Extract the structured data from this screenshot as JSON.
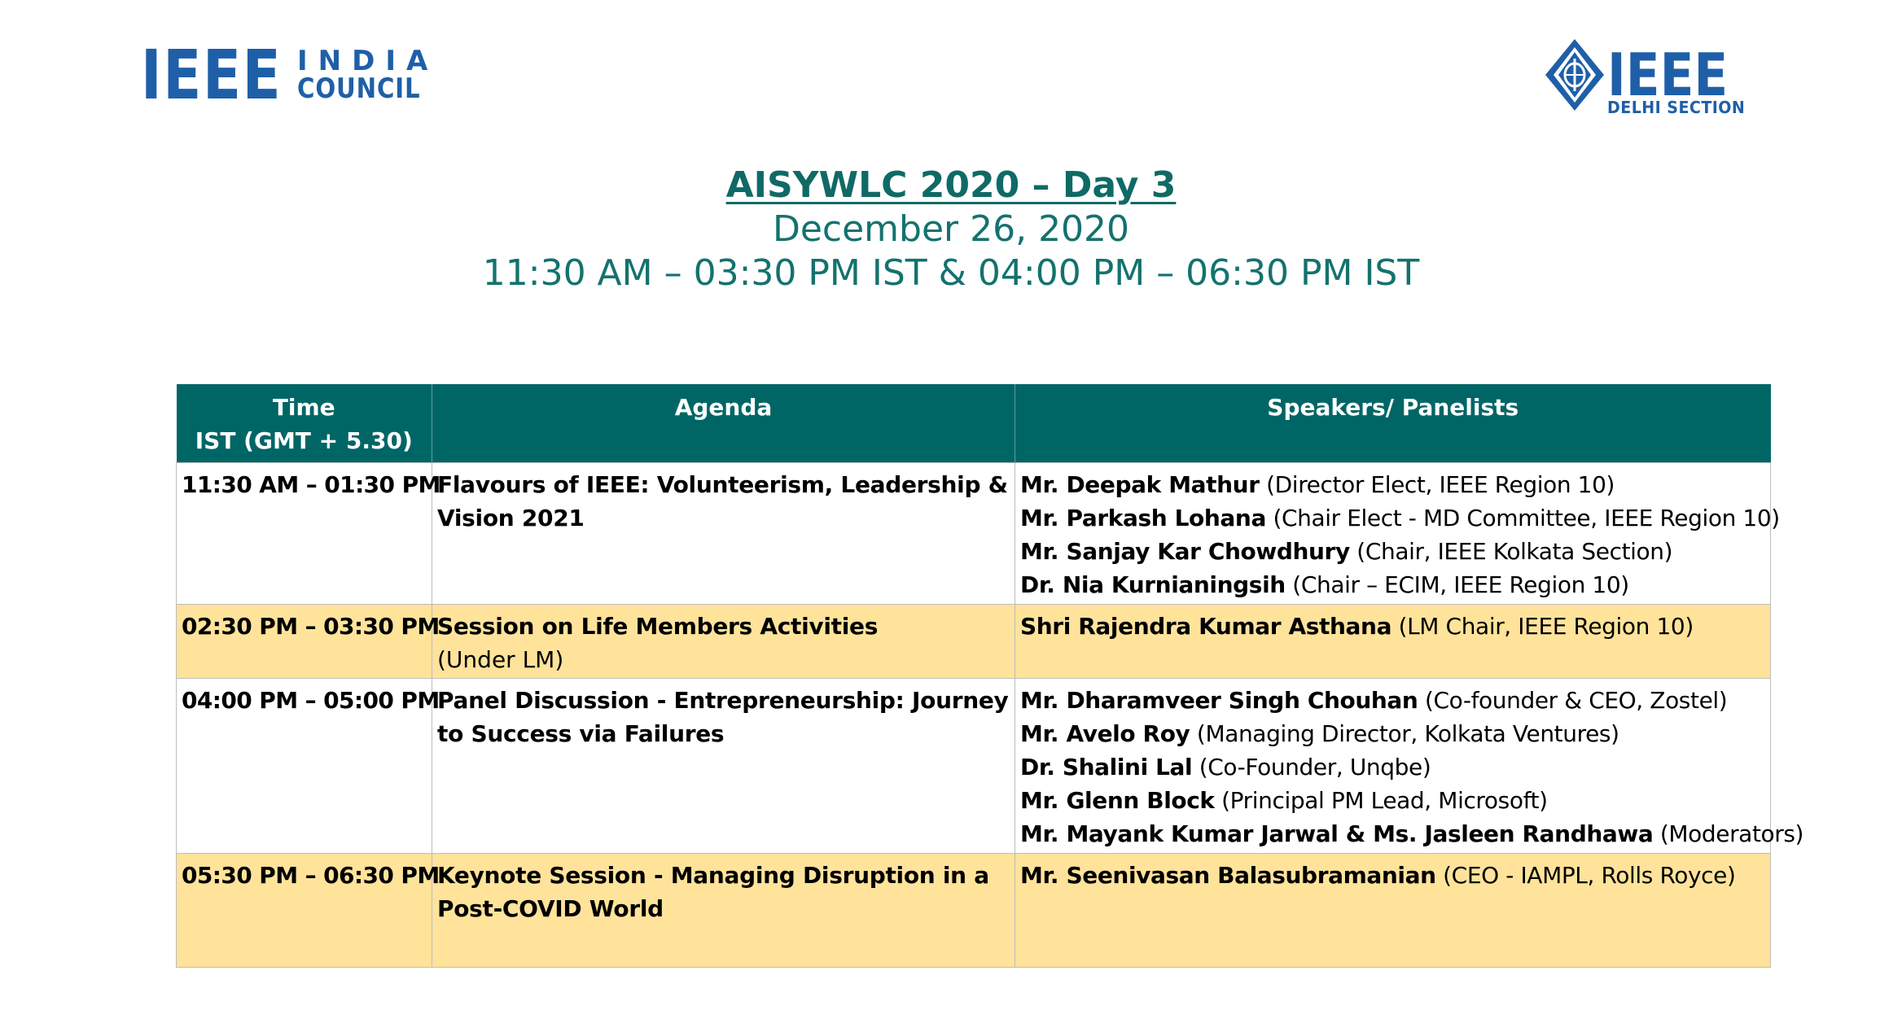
{
  "logos": {
    "left": {
      "main": "IEEE",
      "line1": "INDIA",
      "line2": "COUNCIL"
    },
    "right": {
      "main": "IEEE",
      "sub": "DELHI SECTION"
    }
  },
  "colors": {
    "brand_blue": "#1f5fa8",
    "heading_teal": "#13726e",
    "table_header_bg": "#006665",
    "highlight_row_bg": "#ffe39b"
  },
  "heading": {
    "title": "AISYWLC 2020 – Day 3",
    "date": "December 26, 2020",
    "time": "11:30 AM – 03:30 PM IST & 04:00 PM – 06:30 PM IST"
  },
  "table": {
    "headers": {
      "time_line1": "Time",
      "time_line2": "IST (GMT + 5.30)",
      "agenda": "Agenda",
      "speakers": "Speakers/ Panelists"
    },
    "rows": [
      {
        "time": "11:30 AM – 01:30 PM",
        "agenda": "Flavours of IEEE: Volunteerism, Leadership & Vision 2021",
        "note": "",
        "speakers": [
          {
            "name": "Mr. Deepak Mathur",
            "role": " (Director Elect, IEEE Region 10)"
          },
          {
            "name": "Mr. Parkash Lohana",
            "role": " (Chair Elect - MD Committee, IEEE Region 10)"
          },
          {
            "name": "Mr. Sanjay Kar Chowdhury",
            "role": " (Chair, IEEE Kolkata Section)"
          },
          {
            "name": "Dr. Nia Kurnianingsih",
            "role": " (Chair – ECIM, IEEE Region 10)"
          }
        ]
      },
      {
        "time": "02:30 PM – 03:30 PM",
        "agenda": "Session on Life Members Activities",
        "note": "(Under LM)",
        "speakers": [
          {
            "name": "Shri Rajendra Kumar Asthana",
            "role": " (LM Chair, IEEE Region 10)"
          }
        ]
      },
      {
        "time": "04:00 PM – 05:00 PM",
        "agenda": "Panel Discussion - Entrepreneurship: Journey to Success via Failures",
        "note": "",
        "speakers": [
          {
            "name": "Mr. Dharamveer Singh Chouhan",
            "role": " (Co-founder & CEO, Zostel)"
          },
          {
            "name": "Mr. Avelo Roy",
            "role": " (Managing Director, Kolkata Ventures)"
          },
          {
            "name": "Dr. Shalini Lal",
            "role": " (Co-Founder, Unqbe)"
          },
          {
            "name": "Mr. Glenn Block",
            "role": " (Principal PM Lead, Microsoft)"
          },
          {
            "name": "Mr. Mayank Kumar Jarwal & Ms. Jasleen Randhawa",
            "role": " (Moderators)"
          }
        ]
      },
      {
        "time": "05:30 PM – 06:30 PM",
        "agenda": "Keynote Session - Managing Disruption in a Post-COVID World",
        "note": "",
        "speakers": [
          {
            "name": "Mr. Seenivasan Balasubramanian",
            "role": " (CEO - IAMPL, Rolls Royce)"
          }
        ]
      }
    ]
  }
}
